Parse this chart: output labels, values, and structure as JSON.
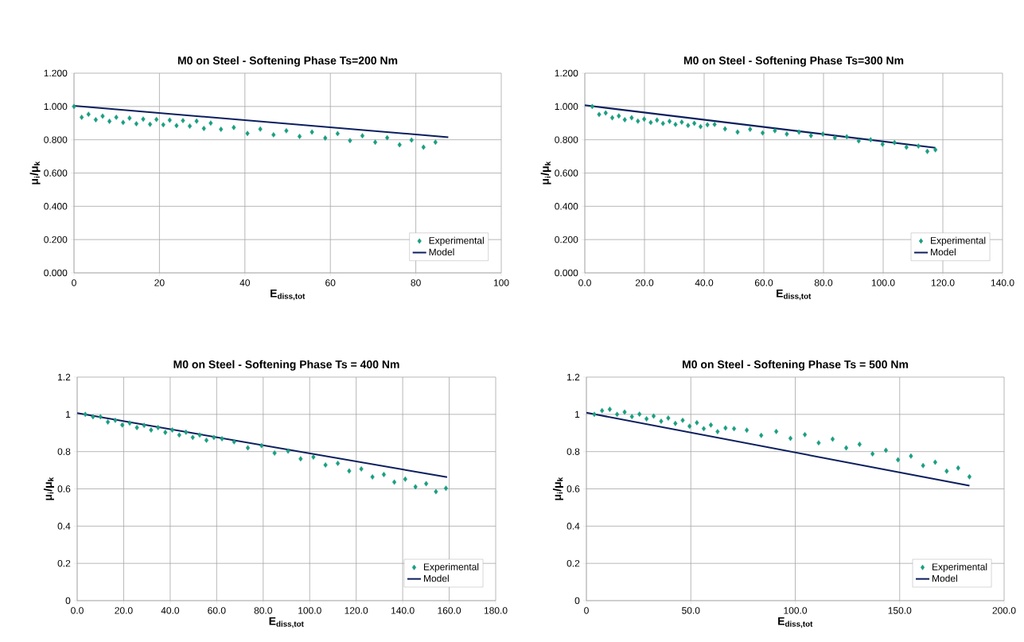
{
  "chart_data": [
    {
      "type": "scatter",
      "title": "M0 on Steel - Softening Phase Ts=200 Nm",
      "xlabel": "E$_{diss,tot}$",
      "ylabel": "μ$_{i}$/μ$_{k}$",
      "xlim": [
        0,
        100
      ],
      "ylim": [
        0,
        1.2
      ],
      "xticks": [
        0,
        20,
        40,
        60,
        80,
        100
      ],
      "yticks": [
        {
          "value": 0,
          "label": "0.000"
        },
        {
          "value": 0.2,
          "label": "0.200"
        },
        {
          "value": 0.4,
          "label": "0.400"
        },
        {
          "value": 0.6,
          "label": "0.600"
        },
        {
          "value": 0.8,
          "label": "0.800"
        },
        {
          "value": 1.0,
          "label": "1.000"
        },
        {
          "value": 1.2,
          "label": "1.200"
        }
      ],
      "grid": true,
      "legend": "bottom right",
      "series": [
        {
          "name": "Experimental",
          "marker": "diamond",
          "color": "#1a9e82",
          "x": [
            0,
            1.8,
            3.4,
            5.1,
            6.7,
            8.3,
            9.9,
            11.5,
            13.0,
            14.6,
            16.2,
            17.8,
            19.3,
            20.9,
            22.4,
            24.0,
            25.5,
            27.1,
            28.7,
            30.4,
            32.0,
            34.4,
            37.4,
            40.6,
            43.6,
            46.7,
            49.7,
            52.8,
            55.7,
            58.8,
            61.7,
            64.6,
            67.5,
            70.5,
            73.3,
            76.2,
            79.0,
            81.8,
            84.6
          ],
          "values": [
            1.0,
            0.935,
            0.953,
            0.92,
            0.942,
            0.911,
            0.935,
            0.904,
            0.93,
            0.896,
            0.924,
            0.893,
            0.922,
            0.89,
            0.918,
            0.885,
            0.915,
            0.882,
            0.912,
            0.868,
            0.9,
            0.863,
            0.874,
            0.838,
            0.864,
            0.83,
            0.854,
            0.82,
            0.846,
            0.81,
            0.837,
            0.795,
            0.824,
            0.785,
            0.812,
            0.77,
            0.798,
            0.755,
            0.785
          ]
        },
        {
          "name": "Model",
          "type": "line",
          "line_style": "solid",
          "color": "#0c1f5e",
          "x": [
            0,
            87.6
          ],
          "values": [
            1.004,
            0.815
          ]
        }
      ]
    },
    {
      "type": "scatter",
      "title": "M0 on Steel - Softening Phase Ts=300 Nm",
      "xlabel": "E$_{diss,tot}$",
      "ylabel": "μ$_{i}$/μ$_{k}$",
      "xlim": [
        0,
        140
      ],
      "ylim": [
        0,
        1.2
      ],
      "xticks": [
        {
          "value": 0,
          "label": "0.0"
        },
        {
          "value": 20,
          "label": "20.0"
        },
        {
          "value": 40,
          "label": "40.0"
        },
        {
          "value": 60,
          "label": "60.0"
        },
        {
          "value": 80,
          "label": "80.0"
        },
        {
          "value": 100,
          "label": "100.0"
        },
        {
          "value": 120,
          "label": "120.0"
        },
        {
          "value": 140,
          "label": "140.0"
        }
      ],
      "yticks": [
        {
          "value": 0,
          "label": "0.000"
        },
        {
          "value": 0.2,
          "label": "0.200"
        },
        {
          "value": 0.4,
          "label": "0.400"
        },
        {
          "value": 0.6,
          "label": "0.600"
        },
        {
          "value": 0.8,
          "label": "0.800"
        },
        {
          "value": 1.0,
          "label": "1.000"
        },
        {
          "value": 1.2,
          "label": "1.200"
        }
      ],
      "grid": true,
      "legend": "bottom right",
      "series": [
        {
          "name": "Experimental",
          "marker": "diamond",
          "color": "#1a9e82",
          "x": [
            2.5,
            4.8,
            7.0,
            9.2,
            11.4,
            13.4,
            15.7,
            17.8,
            19.9,
            22.1,
            24.2,
            26.2,
            28.4,
            30.4,
            32.5,
            34.6,
            36.7,
            38.8,
            41.1,
            43.5,
            47.0,
            51.2,
            55.4,
            59.6,
            63.7,
            67.7,
            71.8,
            75.8,
            79.8,
            83.8,
            87.8,
            91.8,
            95.8,
            99.8,
            103.8,
            107.8,
            111.8,
            114.8,
            117.5
          ],
          "values": [
            1.0,
            0.952,
            0.961,
            0.932,
            0.943,
            0.92,
            0.932,
            0.912,
            0.924,
            0.904,
            0.918,
            0.898,
            0.911,
            0.892,
            0.906,
            0.886,
            0.899,
            0.879,
            0.89,
            0.892,
            0.865,
            0.846,
            0.863,
            0.841,
            0.854,
            0.834,
            0.846,
            0.825,
            0.834,
            0.812,
            0.818,
            0.793,
            0.8,
            0.773,
            0.783,
            0.755,
            0.762,
            0.73,
            0.74
          ]
        },
        {
          "name": "Model",
          "type": "line",
          "line_style": "solid",
          "color": "#0c1f5e",
          "x": [
            0,
            117.5
          ],
          "values": [
            1.007,
            0.752
          ]
        }
      ]
    },
    {
      "type": "scatter",
      "title": "M0 on Steel - Softening Phase Ts = 400 Nm",
      "xlabel": "E$_{diss,tot}$",
      "ylabel": "μ$_{i}$/μ$_{k}$",
      "xlim": [
        0,
        180
      ],
      "ylim": [
        0,
        1.2
      ],
      "xticks": [
        {
          "value": 0,
          "label": "0.0"
        },
        {
          "value": 20,
          "label": "20.0"
        },
        {
          "value": 40,
          "label": "40.0"
        },
        {
          "value": 60,
          "label": "60.0"
        },
        {
          "value": 80,
          "label": "80.0"
        },
        {
          "value": 100,
          "label": "100.0"
        },
        {
          "value": 120,
          "label": "120.0"
        },
        {
          "value": 140,
          "label": "140.0"
        },
        {
          "value": 160,
          "label": "160.0"
        },
        {
          "value": 180,
          "label": "180.0"
        }
      ],
      "yticks": [
        0,
        0.2,
        0.4,
        0.6,
        0.8,
        1,
        1.2
      ],
      "grid": true,
      "legend": "bottom right",
      "series": [
        {
          "name": "Experimental",
          "marker": "diamond",
          "color": "#1a9e82",
          "x": [
            3.5,
            6.8,
            10.0,
            13.2,
            16.4,
            19.4,
            22.6,
            25.7,
            28.8,
            31.8,
            34.8,
            37.9,
            40.9,
            43.9,
            46.8,
            49.7,
            52.7,
            55.6,
            58.8,
            62.3,
            67.5,
            73.4,
            79.3,
            84.9,
            90.7,
            96.1,
            101.6,
            106.8,
            112.1,
            117.0,
            122.2,
            127.0,
            131.9,
            136.4,
            141.1,
            145.5,
            150.1,
            154.3,
            158.6
          ],
          "values": [
            1.0,
            0.987,
            0.987,
            0.959,
            0.968,
            0.943,
            0.953,
            0.929,
            0.941,
            0.916,
            0.929,
            0.903,
            0.916,
            0.889,
            0.904,
            0.876,
            0.889,
            0.861,
            0.876,
            0.869,
            0.853,
            0.82,
            0.832,
            0.792,
            0.803,
            0.761,
            0.771,
            0.728,
            0.737,
            0.696,
            0.707,
            0.664,
            0.677,
            0.636,
            0.652,
            0.611,
            0.628,
            0.585,
            0.603
          ]
        },
        {
          "name": "Model",
          "type": "line",
          "line_style": "solid",
          "color": "#0c1f5e",
          "x": [
            0,
            159.1
          ],
          "values": [
            1.007,
            0.663
          ]
        }
      ]
    },
    {
      "type": "scatter",
      "title": "M0 on Steel - Softening Phase Ts = 500 Nm",
      "xlabel": "E$_{diss,tot}$",
      "ylabel": "μ$_{i}$/μ$_{k}$",
      "xlim": [
        0,
        200
      ],
      "ylim": [
        0,
        1.2
      ],
      "xticks": [
        0,
        {
          "value": 50,
          "label": "50.0"
        },
        {
          "value": 100,
          "label": "100.0"
        },
        {
          "value": 150,
          "label": "150.0"
        },
        {
          "value": 200,
          "label": "200.0"
        }
      ],
      "yticks": [
        0,
        0.2,
        0.4,
        0.6,
        0.8,
        1,
        1.2
      ],
      "grid": true,
      "legend": "bottom right",
      "series": [
        {
          "name": "Experimental",
          "marker": "diamond",
          "color": "#1a9e82",
          "x": [
            3.8,
            7.5,
            11.2,
            14.7,
            18.3,
            21.8,
            25.4,
            28.8,
            32.2,
            35.8,
            39.2,
            42.6,
            46.1,
            49.4,
            52.9,
            56.2,
            59.6,
            62.8,
            66.6,
            70.7,
            76.8,
            83.7,
            90.9,
            97.7,
            104.6,
            111.2,
            117.9,
            124.4,
            130.8,
            137.0,
            143.4,
            149.2,
            155.4,
            161.2,
            167.0,
            172.5,
            178.0,
            183.4
          ],
          "values": [
            1.0,
            1.02,
            1.027,
            1.0,
            1.012,
            0.988,
            1.001,
            0.976,
            0.991,
            0.963,
            0.98,
            0.951,
            0.968,
            0.936,
            0.955,
            0.923,
            0.943,
            0.907,
            0.927,
            0.923,
            0.915,
            0.887,
            0.908,
            0.871,
            0.891,
            0.847,
            0.867,
            0.82,
            0.839,
            0.788,
            0.807,
            0.756,
            0.776,
            0.725,
            0.743,
            0.695,
            0.712,
            0.665
          ]
        },
        {
          "name": "Model",
          "type": "line",
          "line_style": "solid",
          "color": "#0c1f5e",
          "x": [
            0,
            183.4
          ],
          "values": [
            1.009,
            0.617
          ]
        }
      ]
    }
  ]
}
